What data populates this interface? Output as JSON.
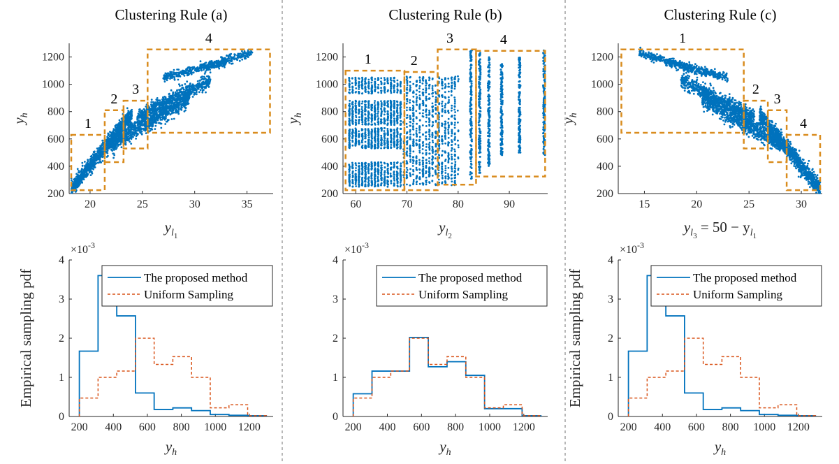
{
  "colors": {
    "scatter": "#0072BD",
    "cluster_box": "#D98C1E",
    "proposed": "#0072BD",
    "uniform": "#D95319",
    "divider": "#888888"
  },
  "chart_data": [
    {
      "id": "scatter-a",
      "type": "scatter",
      "title": "Clustering Rule (a)",
      "xlabel_base": "y",
      "xlabel_sub": "l",
      "xlabel_subsub": "1",
      "xlabel_suffix": "",
      "ylabel_base": "y",
      "ylabel_sub": "h",
      "xlim": [
        18,
        37.5
      ],
      "ylim": [
        200,
        1300
      ],
      "xticks": [
        20,
        25,
        30,
        35
      ],
      "yticks": [
        200,
        400,
        600,
        800,
        1000,
        1200
      ],
      "clusters": [
        {
          "label": "1",
          "x0": 18.2,
          "x1": 21.4,
          "y0": 225,
          "y1": 630
        },
        {
          "label": "2",
          "x0": 21.4,
          "x1": 23.2,
          "y0": 430,
          "y1": 810
        },
        {
          "label": "3",
          "x0": 23.2,
          "x1": 25.5,
          "y0": 530,
          "y1": 880
        },
        {
          "label": "4",
          "x0": 25.5,
          "x1": 37.2,
          "y0": 645,
          "y1": 1255
        }
      ],
      "point_groups": [
        {
          "x": [
            18.2,
            24.0
          ],
          "y": [
            230,
            780
          ],
          "spread": 50,
          "n": 1100
        },
        {
          "x": [
            22.0,
            29.5
          ],
          "y": [
            560,
            900
          ],
          "spread": 55,
          "n": 900
        },
        {
          "x": [
            24.5,
            31.5
          ],
          "y": [
            760,
            1030
          ],
          "spread": 45,
          "n": 700
        },
        {
          "x": [
            27.0,
            33.0
          ],
          "y": [
            1050,
            1160
          ],
          "spread": 25,
          "n": 300
        },
        {
          "x": [
            30.5,
            35.5
          ],
          "y": [
            1120,
            1230
          ],
          "spread": 25,
          "n": 250
        }
      ]
    },
    {
      "id": "scatter-b",
      "type": "scatter",
      "title": "Clustering Rule (b)",
      "xlabel_base": "y",
      "xlabel_sub": "l",
      "xlabel_subsub": "2",
      "xlabel_suffix": "",
      "ylabel_base": "y",
      "ylabel_sub": "h",
      "xlim": [
        57.5,
        97.5
      ],
      "ylim": [
        200,
        1300
      ],
      "xticks": [
        60,
        70,
        80,
        90
      ],
      "yticks": [
        200,
        400,
        600,
        800,
        1000,
        1200
      ],
      "clusters": [
        {
          "label": "1",
          "x0": 58,
          "x1": 69.5,
          "y0": 225,
          "y1": 1100
        },
        {
          "label": "2",
          "x0": 69.5,
          "x1": 76,
          "y0": 225,
          "y1": 1090
        },
        {
          "label": "3",
          "x0": 76,
          "x1": 83.5,
          "y0": 265,
          "y1": 1255
        },
        {
          "label": "4",
          "x0": 83.5,
          "x1": 97,
          "y0": 325,
          "y1": 1245
        }
      ],
      "point_groups": [
        {
          "x": [
            58.5,
            69
          ],
          "y": [
            250,
            430
          ],
          "spread": 0,
          "n": 500
        },
        {
          "x": [
            58.5,
            69
          ],
          "y": [
            530,
            680
          ],
          "spread": 0,
          "n": 500
        },
        {
          "x": [
            58.5,
            69
          ],
          "y": [
            700,
            880
          ],
          "spread": 0,
          "n": 500
        },
        {
          "x": [
            58.5,
            69
          ],
          "y": [
            930,
            1050
          ],
          "spread": 0,
          "n": 250
        },
        {
          "x": [
            69.5,
            80
          ],
          "y": [
            260,
            1060
          ],
          "spread": 0,
          "n": 900
        }
      ],
      "vertical_strips": [
        {
          "x": 82.5,
          "y": [
            300,
            1250
          ]
        },
        {
          "x": 84.2,
          "y": [
            350,
            1230
          ]
        },
        {
          "x": 86.0,
          "y": [
            400,
            1200
          ]
        },
        {
          "x": 88.5,
          "y": [
            480,
            1150
          ]
        },
        {
          "x": 92.0,
          "y": [
            500,
            1200
          ]
        },
        {
          "x": 96.8,
          "y": [
            480,
            1250
          ]
        }
      ]
    },
    {
      "id": "scatter-c",
      "type": "scatter",
      "title": "Clustering Rule (c)",
      "xlabel_base": "y",
      "xlabel_sub": "l",
      "xlabel_subsub": "3",
      "xlabel_suffix": " = 50 − y",
      "xlabel_suffix_sub": "l",
      "xlabel_suffix_subsub": "1",
      "ylabel_base": "y",
      "ylabel_sub": "h",
      "xlim": [
        12.5,
        32
      ],
      "ylim": [
        200,
        1300
      ],
      "xticks": [
        15,
        20,
        25,
        30
      ],
      "yticks": [
        200,
        400,
        600,
        800,
        1000,
        1200
      ],
      "clusters": [
        {
          "label": "1",
          "x0": 12.8,
          "x1": 24.5,
          "y0": 645,
          "y1": 1255
        },
        {
          "label": "2",
          "x0": 24.5,
          "x1": 26.8,
          "y0": 530,
          "y1": 880
        },
        {
          "label": "3",
          "x0": 26.8,
          "x1": 28.6,
          "y0": 430,
          "y1": 810
        },
        {
          "label": "4",
          "x0": 28.6,
          "x1": 31.8,
          "y0": 225,
          "y1": 630
        }
      ],
      "point_groups": [
        {
          "x": [
            31.8,
            26.0
          ],
          "y": [
            230,
            780
          ],
          "spread": 50,
          "n": 1100
        },
        {
          "x": [
            28.0,
            20.5
          ],
          "y": [
            560,
            900
          ],
          "spread": 55,
          "n": 900
        },
        {
          "x": [
            25.5,
            18.5
          ],
          "y": [
            760,
            1030
          ],
          "spread": 45,
          "n": 700
        },
        {
          "x": [
            23.0,
            17.0
          ],
          "y": [
            1050,
            1160
          ],
          "spread": 25,
          "n": 300
        },
        {
          "x": [
            19.5,
            14.5
          ],
          "y": [
            1120,
            1230
          ],
          "spread": 25,
          "n": 250
        }
      ]
    },
    {
      "id": "hist-a",
      "type": "histogram",
      "ylabel": "Empirical sampling pdf",
      "xlabel_base": "y",
      "xlabel_sub": "h",
      "exponent_label": "×10",
      "exponent_value": "-3",
      "xlim": [
        140,
        1340
      ],
      "ylim": [
        0,
        4
      ],
      "xticks": [
        200,
        400,
        600,
        800,
        1000,
        1200
      ],
      "yticks": [
        0,
        1,
        2,
        3,
        4
      ],
      "bin_edges": [
        200,
        310,
        420,
        530,
        640,
        750,
        860,
        970,
        1080,
        1190,
        1300
      ],
      "series": [
        {
          "name": "The proposed method",
          "style": "solid",
          "values": [
            1.67,
            3.6,
            2.57,
            0.6,
            0.18,
            0.22,
            0.15,
            0.05,
            0.03,
            0.02
          ]
        },
        {
          "name": "Uniform Sampling",
          "style": "dashed",
          "values": [
            0.47,
            1.0,
            1.16,
            2.0,
            1.33,
            1.53,
            1.0,
            0.22,
            0.3,
            0.02
          ]
        }
      ]
    },
    {
      "id": "hist-b",
      "type": "histogram",
      "ylabel": "",
      "xlabel_base": "y",
      "xlabel_sub": "h",
      "exponent_label": "×10",
      "exponent_value": "-3",
      "xlim": [
        140,
        1340
      ],
      "ylim": [
        0,
        4
      ],
      "xticks": [
        200,
        400,
        600,
        800,
        1000,
        1200
      ],
      "yticks": [
        0,
        1,
        2,
        3,
        4
      ],
      "bin_edges": [
        200,
        310,
        420,
        530,
        640,
        750,
        860,
        970,
        1080,
        1190,
        1300
      ],
      "series": [
        {
          "name": "The proposed method",
          "style": "solid",
          "values": [
            0.58,
            1.16,
            1.16,
            2.02,
            1.27,
            1.4,
            1.05,
            0.2,
            0.2,
            0.02
          ]
        },
        {
          "name": "Uniform Sampling",
          "style": "dashed",
          "values": [
            0.47,
            1.0,
            1.16,
            2.0,
            1.33,
            1.53,
            1.0,
            0.22,
            0.3,
            0.02
          ]
        }
      ]
    },
    {
      "id": "hist-c",
      "type": "histogram",
      "ylabel": "Empirical sampling pdf",
      "xlabel_base": "y",
      "xlabel_sub": "h",
      "exponent_label": "×10",
      "exponent_value": "-3",
      "xlim": [
        140,
        1340
      ],
      "ylim": [
        0,
        4
      ],
      "xticks": [
        200,
        400,
        600,
        800,
        1000,
        1200
      ],
      "yticks": [
        0,
        1,
        2,
        3,
        4
      ],
      "bin_edges": [
        200,
        310,
        420,
        530,
        640,
        750,
        860,
        970,
        1080,
        1190,
        1300
      ],
      "series": [
        {
          "name": "The proposed method",
          "style": "solid",
          "values": [
            1.67,
            3.6,
            2.57,
            0.6,
            0.18,
            0.22,
            0.15,
            0.05,
            0.03,
            0.02
          ]
        },
        {
          "name": "Uniform Sampling",
          "style": "dashed",
          "values": [
            0.47,
            1.0,
            1.16,
            2.0,
            1.33,
            1.53,
            1.0,
            0.22,
            0.3,
            0.02
          ]
        }
      ]
    }
  ]
}
